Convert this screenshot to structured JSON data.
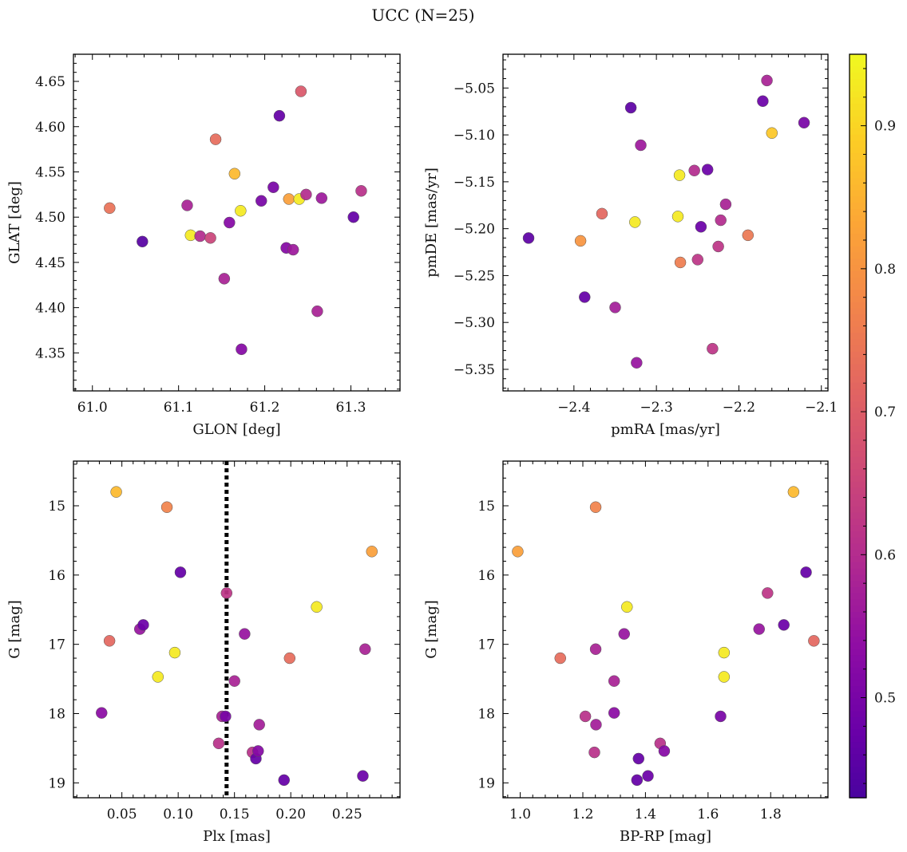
{
  "chart_data": {
    "title": "UCC (N=25)",
    "colorbar": {
      "colormap": "plasma",
      "range": [
        0.43,
        0.95
      ],
      "ticks": [
        0.5,
        0.6,
        0.7,
        0.8,
        0.9
      ],
      "tick_labels": [
        "0.5",
        "0.6",
        "0.7",
        "0.8",
        "0.9"
      ]
    },
    "panels": [
      {
        "id": "glon-glat",
        "type": "scatter",
        "xlabel": "GLON [deg]",
        "ylabel": "GLAT [deg]",
        "xlim": [
          60.978,
          61.357
        ],
        "ylim": [
          4.308,
          4.68
        ],
        "y_inverted": false,
        "xticks": [
          61.0,
          61.1,
          61.2,
          61.3
        ],
        "xtick_labels": [
          "61.0",
          "61.1",
          "61.2",
          "61.3"
        ],
        "yticks": [
          4.35,
          4.4,
          4.45,
          4.5,
          4.55,
          4.6,
          4.65
        ],
        "ytick_labels": [
          "4.35",
          "4.40",
          "4.45",
          "4.50",
          "4.55",
          "4.60",
          "4.65"
        ],
        "points": [
          {
            "x": 61.02,
            "y": 4.51,
            "c": 0.74
          },
          {
            "x": 61.058,
            "y": 4.473,
            "c": 0.45
          },
          {
            "x": 61.11,
            "y": 4.513,
            "c": 0.58
          },
          {
            "x": 61.114,
            "y": 4.48,
            "c": 0.93
          },
          {
            "x": 61.125,
            "y": 4.479,
            "c": 0.6
          },
          {
            "x": 61.137,
            "y": 4.477,
            "c": 0.65
          },
          {
            "x": 61.143,
            "y": 4.586,
            "c": 0.73
          },
          {
            "x": 61.153,
            "y": 4.432,
            "c": 0.58
          },
          {
            "x": 61.159,
            "y": 4.494,
            "c": 0.52
          },
          {
            "x": 61.165,
            "y": 4.548,
            "c": 0.86
          },
          {
            "x": 61.172,
            "y": 4.507,
            "c": 0.93
          },
          {
            "x": 61.173,
            "y": 4.354,
            "c": 0.52
          },
          {
            "x": 61.196,
            "y": 4.518,
            "c": 0.5
          },
          {
            "x": 61.21,
            "y": 4.533,
            "c": 0.5
          },
          {
            "x": 61.217,
            "y": 4.612,
            "c": 0.47
          },
          {
            "x": 61.225,
            "y": 4.466,
            "c": 0.52
          },
          {
            "x": 61.228,
            "y": 4.52,
            "c": 0.82
          },
          {
            "x": 61.233,
            "y": 4.464,
            "c": 0.56
          },
          {
            "x": 61.24,
            "y": 4.52,
            "c": 0.93
          },
          {
            "x": 61.242,
            "y": 4.639,
            "c": 0.69
          },
          {
            "x": 61.248,
            "y": 4.525,
            "c": 0.6
          },
          {
            "x": 61.261,
            "y": 4.396,
            "c": 0.58
          },
          {
            "x": 61.266,
            "y": 4.521,
            "c": 0.56
          },
          {
            "x": 61.303,
            "y": 4.5,
            "c": 0.47
          },
          {
            "x": 61.312,
            "y": 4.529,
            "c": 0.61
          }
        ]
      },
      {
        "id": "pmra-pmde",
        "type": "scatter",
        "xlabel": "pmRA [mas/yr]",
        "ylabel": "pmDE [mas/yr]",
        "xlim": [
          -2.486,
          -2.092
        ],
        "ylim": [
          -5.373,
          -5.014
        ],
        "y_inverted": false,
        "xticks": [
          -2.4,
          -2.3,
          -2.2,
          -2.1
        ],
        "xtick_labels": [
          "−2.4",
          "−2.3",
          "−2.2",
          "−2.1"
        ],
        "yticks": [
          -5.35,
          -5.3,
          -5.25,
          -5.2,
          -5.15,
          -5.1,
          -5.05
        ],
        "ytick_labels": [
          "−5.35",
          "−5.30",
          "−5.25",
          "−5.20",
          "−5.15",
          "−5.10",
          "−5.05"
        ],
        "points": [
          {
            "x": -2.455,
            "y": -5.21,
            "c": 0.46
          },
          {
            "x": -2.392,
            "y": -5.213,
            "c": 0.8
          },
          {
            "x": -2.387,
            "y": -5.273,
            "c": 0.47
          },
          {
            "x": -2.366,
            "y": -5.184,
            "c": 0.72
          },
          {
            "x": -2.35,
            "y": -5.284,
            "c": 0.57
          },
          {
            "x": -2.331,
            "y": -5.071,
            "c": 0.46
          },
          {
            "x": -2.326,
            "y": -5.193,
            "c": 0.93
          },
          {
            "x": -2.324,
            "y": -5.343,
            "c": 0.55
          },
          {
            "x": -2.319,
            "y": -5.111,
            "c": 0.56
          },
          {
            "x": -2.274,
            "y": -5.187,
            "c": 0.93
          },
          {
            "x": -2.272,
            "y": -5.143,
            "c": 0.93
          },
          {
            "x": -2.271,
            "y": -5.236,
            "c": 0.76
          },
          {
            "x": -2.254,
            "y": -5.138,
            "c": 0.6
          },
          {
            "x": -2.25,
            "y": -5.233,
            "c": 0.62
          },
          {
            "x": -2.246,
            "y": -5.198,
            "c": 0.48
          },
          {
            "x": -2.238,
            "y": -5.137,
            "c": 0.48
          },
          {
            "x": -2.232,
            "y": -5.328,
            "c": 0.62
          },
          {
            "x": -2.225,
            "y": -5.219,
            "c": 0.62
          },
          {
            "x": -2.222,
            "y": -5.191,
            "c": 0.6
          },
          {
            "x": -2.216,
            "y": -5.174,
            "c": 0.58
          },
          {
            "x": -2.189,
            "y": -5.207,
            "c": 0.75
          },
          {
            "x": -2.171,
            "y": -5.064,
            "c": 0.48
          },
          {
            "x": -2.166,
            "y": -5.042,
            "c": 0.58
          },
          {
            "x": -2.16,
            "y": -5.098,
            "c": 0.88
          },
          {
            "x": -2.121,
            "y": -5.087,
            "c": 0.5
          }
        ]
      },
      {
        "id": "plx-g",
        "type": "scatter",
        "xlabel": "Plx [mas]",
        "ylabel": "G [mag]",
        "xlim": [
          0.007,
          0.297
        ],
        "ylim": [
          19.215,
          14.355
        ],
        "y_inverted": true,
        "vline": {
          "x": 0.143,
          "style": "dotted"
        },
        "xticks": [
          0.05,
          0.1,
          0.15,
          0.2,
          0.25
        ],
        "xtick_labels": [
          "0.05",
          "0.10",
          "0.15",
          "0.20",
          "0.25"
        ],
        "yticks": [
          15,
          16,
          17,
          18,
          19
        ],
        "ytick_labels": [
          "15",
          "16",
          "17",
          "18",
          "19"
        ],
        "points": [
          {
            "x": 0.032,
            "y": 17.99,
            "c": 0.53
          },
          {
            "x": 0.039,
            "y": 16.95,
            "c": 0.72
          },
          {
            "x": 0.045,
            "y": 14.8,
            "c": 0.86
          },
          {
            "x": 0.066,
            "y": 16.78,
            "c": 0.55
          },
          {
            "x": 0.069,
            "y": 16.72,
            "c": 0.48
          },
          {
            "x": 0.082,
            "y": 17.47,
            "c": 0.93
          },
          {
            "x": 0.09,
            "y": 15.02,
            "c": 0.77
          },
          {
            "x": 0.097,
            "y": 17.12,
            "c": 0.93
          },
          {
            "x": 0.102,
            "y": 15.96,
            "c": 0.47
          },
          {
            "x": 0.136,
            "y": 18.43,
            "c": 0.61
          },
          {
            "x": 0.139,
            "y": 18.04,
            "c": 0.58
          },
          {
            "x": 0.142,
            "y": 18.04,
            "c": 0.5
          },
          {
            "x": 0.143,
            "y": 16.26,
            "c": 0.62
          },
          {
            "x": 0.15,
            "y": 17.53,
            "c": 0.58
          },
          {
            "x": 0.159,
            "y": 16.85,
            "c": 0.55
          },
          {
            "x": 0.166,
            "y": 18.56,
            "c": 0.61
          },
          {
            "x": 0.169,
            "y": 18.65,
            "c": 0.47
          },
          {
            "x": 0.171,
            "y": 18.54,
            "c": 0.52
          },
          {
            "x": 0.172,
            "y": 18.16,
            "c": 0.57
          },
          {
            "x": 0.194,
            "y": 18.96,
            "c": 0.47
          },
          {
            "x": 0.199,
            "y": 17.2,
            "c": 0.73
          },
          {
            "x": 0.223,
            "y": 16.46,
            "c": 0.93
          },
          {
            "x": 0.264,
            "y": 18.9,
            "c": 0.48
          },
          {
            "x": 0.266,
            "y": 17.07,
            "c": 0.58
          },
          {
            "x": 0.272,
            "y": 15.66,
            "c": 0.82
          }
        ]
      },
      {
        "id": "bprp-g",
        "type": "scatter",
        "xlabel": "BP-RP [mag]",
        "ylabel": "G [mag]",
        "xlim": [
          0.945,
          1.983
        ],
        "ylim": [
          19.215,
          14.355
        ],
        "y_inverted": true,
        "xticks": [
          1.0,
          1.2,
          1.4,
          1.6,
          1.8
        ],
        "xtick_labels": [
          "1.0",
          "1.2",
          "1.4",
          "1.6",
          "1.8"
        ],
        "yticks": [
          15,
          16,
          17,
          18,
          19
        ],
        "ytick_labels": [
          "15",
          "16",
          "17",
          "18",
          "19"
        ],
        "points": [
          {
            "x": 0.992,
            "y": 15.66,
            "c": 0.82
          },
          {
            "x": 1.128,
            "y": 17.2,
            "c": 0.73
          },
          {
            "x": 1.208,
            "y": 18.04,
            "c": 0.61
          },
          {
            "x": 1.237,
            "y": 18.56,
            "c": 0.61
          },
          {
            "x": 1.241,
            "y": 15.02,
            "c": 0.77
          },
          {
            "x": 1.241,
            "y": 17.07,
            "c": 0.58
          },
          {
            "x": 1.242,
            "y": 18.16,
            "c": 0.57
          },
          {
            "x": 1.3,
            "y": 17.53,
            "c": 0.58
          },
          {
            "x": 1.3,
            "y": 17.99,
            "c": 0.53
          },
          {
            "x": 1.332,
            "y": 16.85,
            "c": 0.55
          },
          {
            "x": 1.341,
            "y": 16.46,
            "c": 0.93
          },
          {
            "x": 1.373,
            "y": 18.96,
            "c": 0.47
          },
          {
            "x": 1.378,
            "y": 18.65,
            "c": 0.47
          },
          {
            "x": 1.408,
            "y": 18.9,
            "c": 0.48
          },
          {
            "x": 1.447,
            "y": 18.43,
            "c": 0.61
          },
          {
            "x": 1.46,
            "y": 18.54,
            "c": 0.52
          },
          {
            "x": 1.64,
            "y": 18.04,
            "c": 0.5
          },
          {
            "x": 1.651,
            "y": 17.12,
            "c": 0.93
          },
          {
            "x": 1.651,
            "y": 17.47,
            "c": 0.93
          },
          {
            "x": 1.763,
            "y": 16.78,
            "c": 0.55
          },
          {
            "x": 1.79,
            "y": 16.26,
            "c": 0.62
          },
          {
            "x": 1.842,
            "y": 16.72,
            "c": 0.48
          },
          {
            "x": 1.873,
            "y": 14.8,
            "c": 0.86
          },
          {
            "x": 1.913,
            "y": 15.96,
            "c": 0.47
          },
          {
            "x": 1.938,
            "y": 16.95,
            "c": 0.72
          }
        ]
      }
    ]
  }
}
